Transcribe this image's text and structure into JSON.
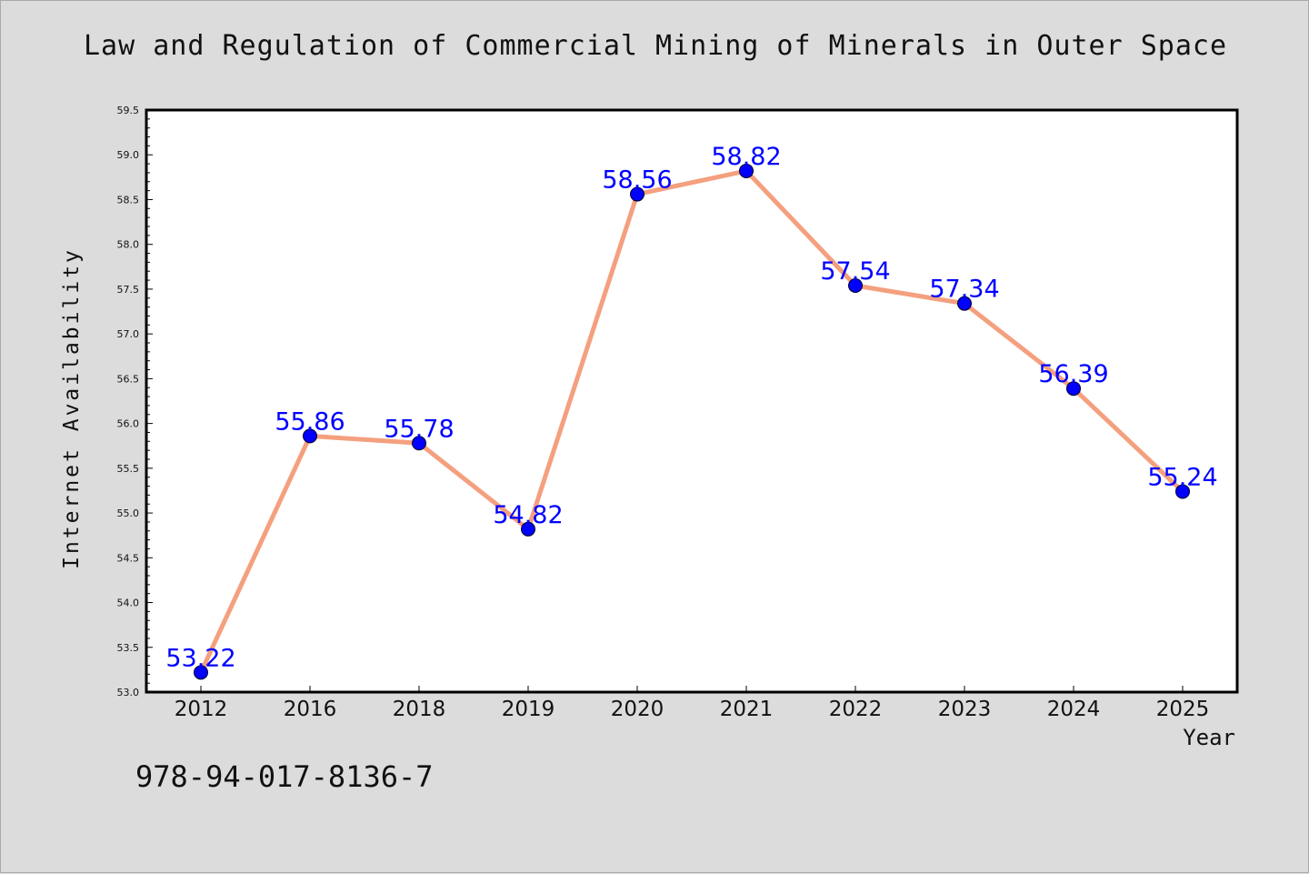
{
  "chart_data": {
    "type": "line",
    "title": "Law and Regulation of Commercial Mining of Minerals in Outer Space",
    "xlabel": "Year",
    "ylabel": "Internet Availability",
    "categories": [
      "2012",
      "2016",
      "2018",
      "2019",
      "2020",
      "2021",
      "2022",
      "2023",
      "2024",
      "2025"
    ],
    "series": [
      {
        "values": [
          53.22,
          55.86,
          55.78,
          54.82,
          58.56,
          58.82,
          57.54,
          57.34,
          56.39,
          55.24
        ],
        "line_color": "#f4a07f",
        "marker_color": "#0000ff"
      }
    ],
    "data_labels": [
      "53.22",
      "55.86",
      "55.78",
      "54.82",
      "58.56",
      "58.82",
      "57.54",
      "57.34",
      "56.39",
      "55.24"
    ],
    "ylim": [
      53.0,
      59.5
    ],
    "yticks": [
      "53.0",
      "53.5",
      "54.0",
      "54.5",
      "55.0",
      "55.5",
      "56.0",
      "56.5",
      "57.0",
      "57.5",
      "58.0",
      "58.5",
      "59.0",
      "59.5"
    ],
    "grid": false,
    "label_color": "#0000ff"
  },
  "footer": {
    "code": "978-94-017-8136-7"
  }
}
